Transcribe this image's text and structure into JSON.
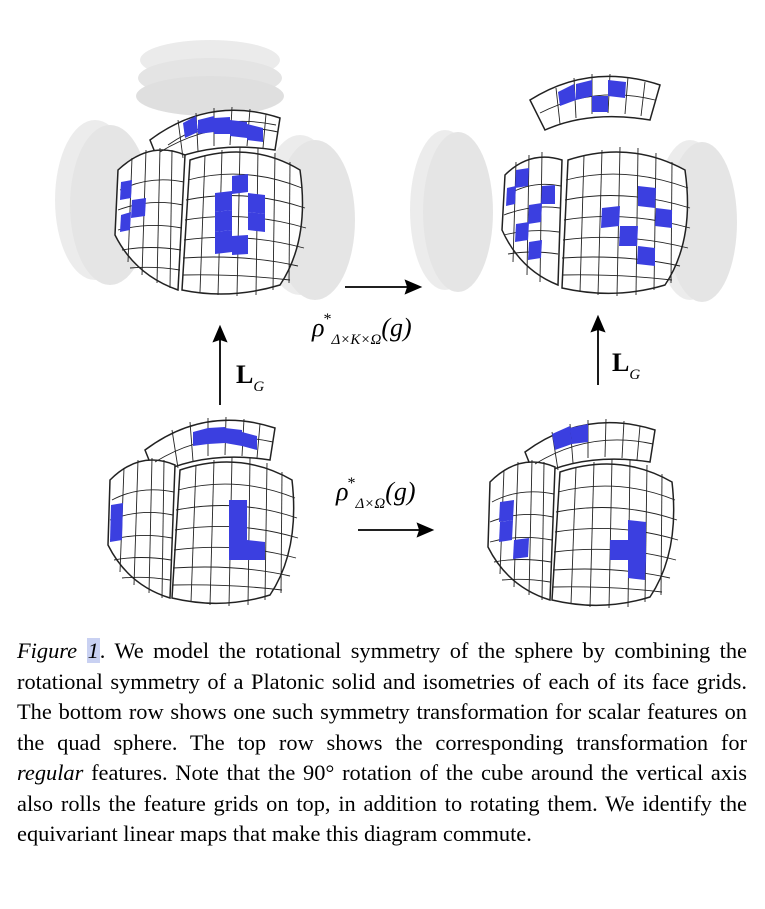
{
  "labels": {
    "top_arrow": {
      "rho": "ρ",
      "star": "*",
      "sub": "Δ×K×Ω",
      "arg": "(g)"
    },
    "bottom_arrow": {
      "rho": "ρ",
      "star": "*",
      "sub": "Δ×Ω",
      "arg": "(g)"
    },
    "left_lift": {
      "L": "L",
      "sub": "G"
    },
    "right_lift": {
      "L": "L",
      "sub": "G"
    }
  },
  "caption": {
    "figure_word": "Figure",
    "figure_number": "1",
    "text_1": ". We model the rotational symmetry of the sphere by combining the rotational symmetry of a Platonic solid and isometries of each of its face grids. The bottom row shows one such symmetry transformation for scalar features on the quad sphere. The top row shows the corresponding transformation for ",
    "emph": "regular",
    "text_2": " features. Note that the 90° rotation of the cube around the vertical axis also rolls the feature grids on top, in addition to rotating them. We identify the equivariant linear maps that make this diagram commute."
  },
  "colors": {
    "feature": "#3b3fe0",
    "grid": "#222222",
    "ghost": "#d8d8d8"
  }
}
